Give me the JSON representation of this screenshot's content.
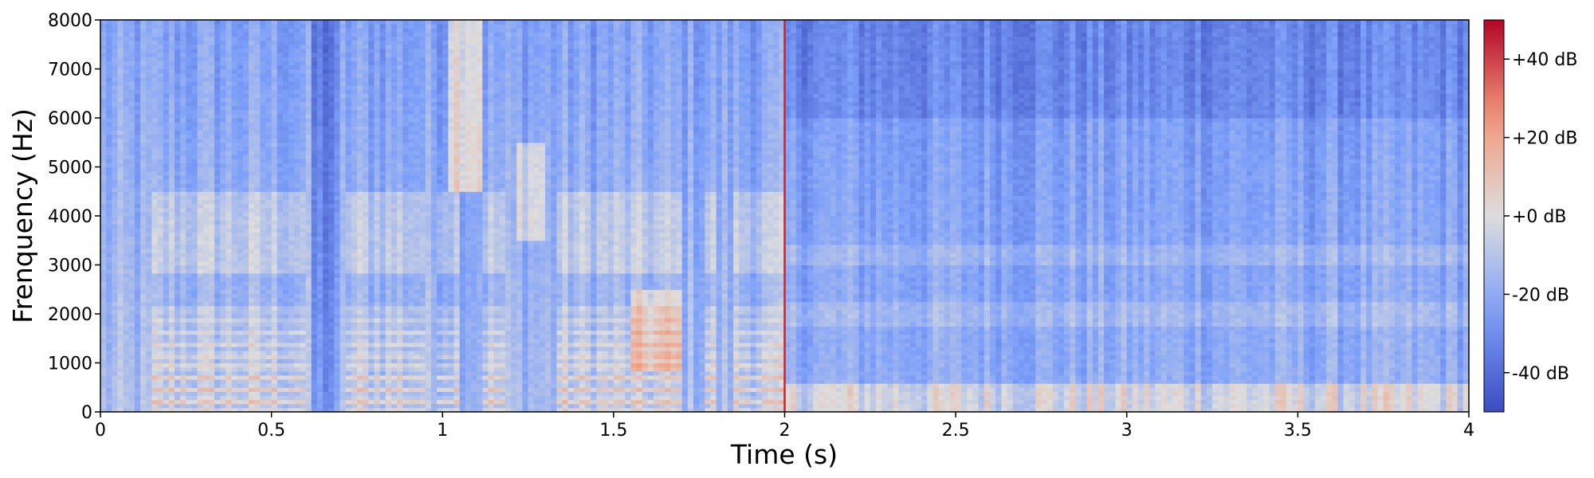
{
  "chart_data": {
    "type": "heatmap",
    "title": "",
    "xlabel": "Time (s)",
    "ylabel": "Frenquency (Hz)",
    "xlim": [
      0,
      4.0
    ],
    "ylim": [
      0,
      8000
    ],
    "x_ticks": [
      0,
      0.5,
      1,
      1.5,
      2,
      2.5,
      3,
      3.5,
      4
    ],
    "x_tick_labels": [
      "0",
      "0.5",
      "1",
      "1.5",
      "2",
      "2.5",
      "3",
      "3.5",
      "4"
    ],
    "y_ticks": [
      0,
      1000,
      2000,
      3000,
      4000,
      5000,
      6000,
      7000,
      8000
    ],
    "y_tick_labels": [
      "0",
      "1000",
      "2000",
      "3000",
      "4000",
      "5000",
      "6000",
      "7000",
      "8000"
    ],
    "colormap": "coolwarm",
    "color_range_db": [
      -50,
      50
    ],
    "colorbar": {
      "ticks": [
        40,
        20,
        0,
        -20,
        -40
      ],
      "labels": [
        "+40 dB",
        "+20 dB",
        "+0 dB",
        "-20 dB",
        "-40 dB"
      ]
    },
    "marker_line": {
      "x": 2.0,
      "color": "#e31a1c"
    },
    "segments": [
      {
        "start": 0.0,
        "end": 2.0,
        "description": "speech with low-frequency harmonics and formants"
      },
      {
        "start": 2.0,
        "end": 4.0,
        "description": "noisier signal with broadband stripes"
      }
    ]
  },
  "colors": {
    "cold": "#3b4cc0",
    "neutral": "#dddddd",
    "warm": "#b40426",
    "marker": "#e31a1c"
  }
}
